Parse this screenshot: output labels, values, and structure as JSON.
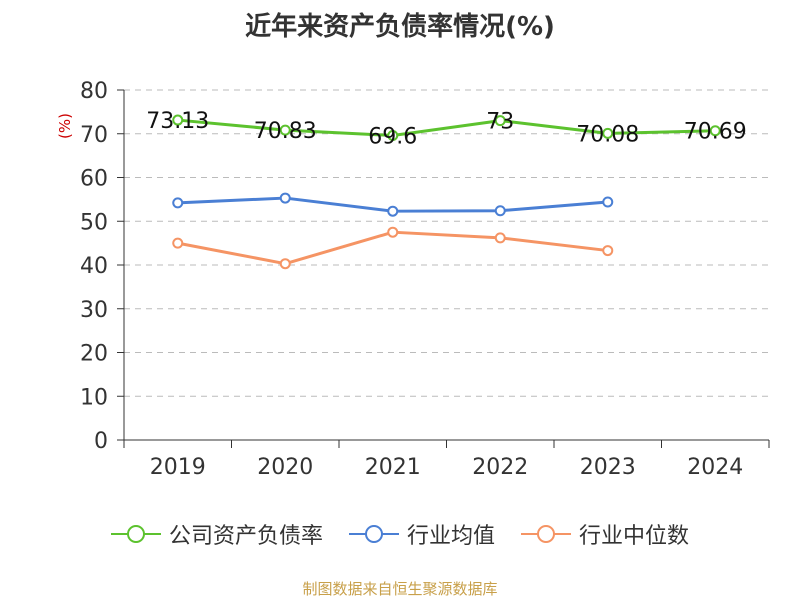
{
  "title": "近年来资产负债率情况(%)",
  "source_text": "制图数据来自恒生聚源数据库",
  "colors": {
    "company": "#5cc22e",
    "industry_avg": "#4a7fd4",
    "industry_median": "#f59464",
    "axis": "#333333",
    "grid": "#bbbbbb",
    "ylabel": "#cc0000"
  },
  "chart_data": {
    "type": "line",
    "title": "近年来资产负债率情况(%)",
    "xlabel": "",
    "ylabel": "(%)",
    "categories": [
      "2019",
      "2020",
      "2021",
      "2022",
      "2023",
      "2024"
    ],
    "ylim": [
      0,
      80
    ],
    "yticks": [
      0,
      10,
      20,
      30,
      40,
      50,
      60,
      70,
      80
    ],
    "grid": true,
    "legend_position": "bottom",
    "series": [
      {
        "name": "公司资产负债率",
        "color": "#5cc22e",
        "values": [
          73.13,
          70.83,
          69.6,
          73,
          70.08,
          70.69
        ],
        "labels": [
          "73.13",
          "70.83",
          "69.6",
          "73",
          "70.08",
          "70.69"
        ]
      },
      {
        "name": "行业均值",
        "color": "#4a7fd4",
        "values": [
          54.2,
          55.3,
          52.3,
          52.4,
          54.4,
          null
        ]
      },
      {
        "name": "行业中位数",
        "color": "#f59464",
        "values": [
          45.0,
          40.3,
          47.5,
          46.2,
          43.3,
          null
        ]
      }
    ]
  }
}
